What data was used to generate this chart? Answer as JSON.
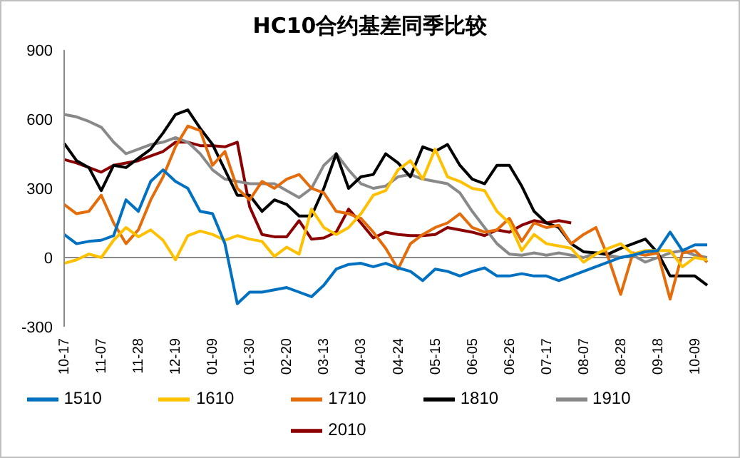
{
  "chart_data": {
    "type": "line",
    "title": "HC10合约基差同季比较",
    "categories": [
      "10-17",
      null,
      null,
      "11-07",
      null,
      null,
      "11-28",
      null,
      null,
      "12-19",
      null,
      null,
      "01-09",
      null,
      null,
      "01-30",
      null,
      null,
      "02-20",
      null,
      null,
      "03-13",
      null,
      null,
      "04-03",
      null,
      null,
      "04-24",
      null,
      null,
      "05-15",
      null,
      null,
      "06-05",
      null,
      null,
      "06-26",
      null,
      null,
      "07-17",
      null,
      null,
      "08-07",
      null,
      null,
      "08-28",
      null,
      null,
      "09-18",
      null,
      null,
      "10-09",
      null
    ],
    "series": [
      {
        "name": "2010",
        "color": "#8b0000",
        "values": [
          425,
          410,
          390,
          370,
          400,
          410,
          420,
          440,
          460,
          500,
          500,
          485,
          485,
          480,
          500,
          220,
          100,
          90,
          90,
          160,
          80,
          85,
          110,
          210,
          150,
          85,
          110,
          100,
          95,
          95,
          100,
          130,
          120,
          110,
          95,
          120,
          110,
          140,
          160,
          150,
          160,
          150,
          null,
          null,
          null,
          null,
          null,
          null,
          null,
          null,
          null,
          null,
          null
        ]
      },
      {
        "name": "1910",
        "color": "#898989",
        "values": [
          620,
          610,
          590,
          565,
          500,
          450,
          470,
          490,
          500,
          520,
          500,
          450,
          380,
          340,
          330,
          320,
          320,
          320,
          290,
          260,
          300,
          400,
          450,
          380,
          320,
          300,
          310,
          350,
          360,
          340,
          330,
          320,
          280,
          200,
          130,
          60,
          15,
          10,
          20,
          10,
          20,
          10,
          0,
          20,
          10,
          0,
          10,
          -20,
          0,
          20,
          30,
          10,
          0
        ]
      },
      {
        "name": "1810",
        "color": "#000000",
        "values": [
          495,
          420,
          390,
          290,
          400,
          390,
          430,
          470,
          540,
          620,
          640,
          560,
          490,
          380,
          270,
          270,
          200,
          250,
          230,
          180,
          180,
          300,
          450,
          300,
          350,
          360,
          450,
          410,
          350,
          480,
          460,
          490,
          400,
          340,
          320,
          400,
          400,
          310,
          200,
          150,
          130,
          60,
          25,
          20,
          15,
          40,
          60,
          80,
          20,
          -80,
          -80,
          -80,
          -120
        ]
      },
      {
        "name": "1710",
        "color": "#e46c0a",
        "values": [
          230,
          190,
          200,
          270,
          150,
          60,
          120,
          250,
          350,
          480,
          570,
          550,
          400,
          460,
          300,
          250,
          330,
          300,
          340,
          360,
          300,
          280,
          200,
          190,
          170,
          110,
          40,
          -50,
          60,
          100,
          130,
          150,
          190,
          130,
          110,
          120,
          170,
          70,
          150,
          130,
          140,
          60,
          100,
          130,
          0,
          -160,
          20,
          10,
          20,
          -180,
          20,
          30,
          -20
        ]
      },
      {
        "name": "1610",
        "color": "#ffc000",
        "values": [
          -25,
          -10,
          15,
          0,
          75,
          130,
          90,
          120,
          75,
          -10,
          95,
          115,
          100,
          75,
          95,
          80,
          70,
          5,
          45,
          15,
          210,
          130,
          100,
          130,
          190,
          270,
          290,
          380,
          420,
          340,
          470,
          350,
          330,
          300,
          290,
          200,
          150,
          30,
          100,
          60,
          50,
          40,
          -20,
          15,
          40,
          60,
          15,
          30,
          30,
          30,
          -40,
          0,
          -10
        ]
      },
      {
        "name": "1510",
        "color": "#0070c0",
        "values": [
          100,
          60,
          70,
          75,
          95,
          250,
          200,
          330,
          380,
          330,
          300,
          200,
          190,
          60,
          -200,
          -150,
          -150,
          -140,
          -130,
          -150,
          -170,
          -120,
          -50,
          -30,
          -25,
          -40,
          -25,
          -45,
          -60,
          -100,
          -50,
          -60,
          -80,
          -60,
          -45,
          -80,
          -80,
          -70,
          -80,
          -80,
          -100,
          -80,
          -60,
          -40,
          -20,
          0,
          10,
          25,
          30,
          110,
          30,
          55,
          55
        ]
      }
    ],
    "ylim": [
      -300,
      900
    ],
    "yticks": [
      -300,
      0,
      300,
      600,
      900
    ],
    "ref_lines": [
      {
        "axis": "y",
        "value": 0,
        "color": "#898989"
      }
    ],
    "grid": false,
    "legend": "bottom",
    "marker": "none",
    "line_style": "solid"
  }
}
